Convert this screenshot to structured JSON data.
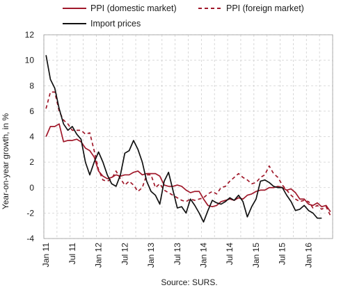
{
  "chart_data": {
    "type": "line",
    "ylabel": "Year-on-year growth, in %",
    "source": "Source: SURS.",
    "ylim": [
      -4,
      12
    ],
    "yticks": [
      -4,
      -2,
      0,
      2,
      4,
      6,
      8,
      10,
      12
    ],
    "grid": true,
    "legend_position": "top",
    "x_tick_labels": [
      "Jan 11",
      "Jul 11",
      "Jan 12",
      "Jul 12",
      "Jan 13",
      "Jul 13",
      "Jan 14",
      "Jul 14",
      "Jan 15",
      "Jul 15",
      "Jan 16"
    ],
    "x_start": "Jan 11",
    "x_count": 66,
    "series": [
      {
        "name": "PPI (domestic market)",
        "color": "#a0182a",
        "dash": "solid",
        "values": [
          4.0,
          4.8,
          4.8,
          5.0,
          3.6,
          3.7,
          3.7,
          3.8,
          3.6,
          3.1,
          2.9,
          2.4,
          1.3,
          0.9,
          0.7,
          0.8,
          1.0,
          0.9,
          1.0,
          1.0,
          1.2,
          1.3,
          1.0,
          1.1,
          1.1,
          1.1,
          0.9,
          0.2,
          0.1,
          0.1,
          0.2,
          0.1,
          -0.2,
          -0.4,
          -0.3,
          -0.3,
          -0.9,
          -1.4,
          -1.5,
          -1.4,
          -1.1,
          -1.0,
          -0.9,
          -1.0,
          -0.8,
          -0.9,
          -0.6,
          -0.5,
          -0.3,
          -0.2,
          -0.2,
          0.0,
          0.0,
          0.1,
          0.0,
          -0.2,
          -0.1,
          -0.4,
          -0.9,
          -0.9,
          -1.3,
          -1.4,
          -1.2,
          -1.5,
          -1.4,
          -1.9
        ]
      },
      {
        "name": "PPI (foreign market)",
        "color": "#a0182a",
        "dash": "dashed",
        "values": [
          6.2,
          7.5,
          7.5,
          6.0,
          5.3,
          5.0,
          4.5,
          4.5,
          4.5,
          4.2,
          4.3,
          2.9,
          1.4,
          0.6,
          0.5,
          0.7,
          1.3,
          0.7,
          0.2,
          0.5,
          0.2,
          -0.3,
          0.0,
          1.0,
          1.0,
          0.0,
          0.3,
          -0.2,
          -0.4,
          -0.6,
          -0.8,
          -1.0,
          -1.1,
          -0.9,
          -1.0,
          -0.9,
          -0.8,
          -0.5,
          -0.3,
          -0.5,
          0.0,
          0.1,
          0.5,
          0.8,
          1.1,
          0.8,
          0.6,
          0.3,
          0.4,
          0.8,
          1.0,
          1.7,
          1.1,
          0.8,
          0.2,
          -0.2,
          -0.6,
          -0.9,
          -1.1,
          -1.0,
          -1.1,
          -1.6,
          -1.4,
          -1.7,
          -1.5,
          -2.2
        ]
      },
      {
        "name": "Import prices",
        "color": "#111111",
        "dash": "solid",
        "values": [
          10.4,
          8.5,
          7.8,
          6.2,
          5.0,
          4.5,
          4.8,
          4.2,
          3.8,
          2.0,
          1.0,
          2.0,
          2.8,
          2.0,
          1.0,
          0.3,
          0.1,
          1.0,
          2.7,
          2.9,
          3.7,
          3.0,
          2.0,
          0.5,
          -0.3,
          -0.6,
          -1.3,
          0.5,
          1.2,
          -0.2,
          -1.6,
          -1.5,
          -2.0,
          -0.9,
          -1.4,
          -2.0,
          -2.7,
          -1.8,
          -1.0,
          -1.2,
          -1.3,
          -1.1,
          -0.8,
          -1.0,
          -0.6,
          -1.1,
          -2.3,
          -1.5,
          -0.9,
          0.5,
          0.6,
          0.4,
          0.1,
          0.0,
          0.0,
          -0.6,
          -1.1,
          -1.8,
          -1.7,
          -1.4,
          -1.8,
          -2.0,
          -2.4,
          -2.4
        ]
      }
    ]
  }
}
